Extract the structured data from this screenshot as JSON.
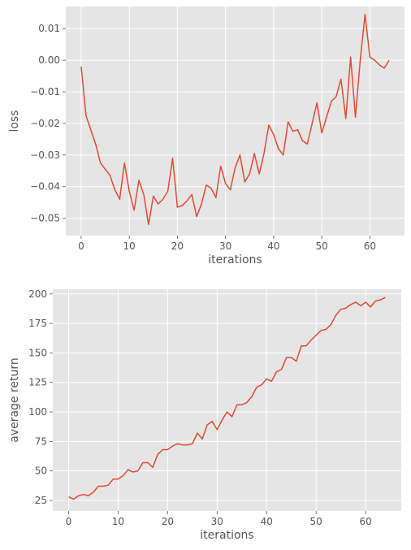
{
  "colors": {
    "panel_background": "#e5e5e5",
    "grid": "#ffffff",
    "line": "#e24a33",
    "text": "#555555"
  },
  "chart_data": [
    {
      "type": "line",
      "title": "",
      "xlabel": "iterations",
      "ylabel": "loss",
      "xlim": [
        -3.2,
        67.2
      ],
      "ylim": [
        -0.0555,
        0.017
      ],
      "xticks": [
        0,
        10,
        20,
        30,
        40,
        50,
        60
      ],
      "yticks": [
        0.01,
        0.0,
        -0.01,
        -0.02,
        -0.03,
        -0.04,
        -0.05
      ],
      "xtick_labels": [
        "0",
        "10",
        "20",
        "30",
        "40",
        "50",
        "60"
      ],
      "ytick_labels": [
        "0.01",
        "0.00",
        "−0.01",
        "−0.02",
        "−0.03",
        "−0.04",
        "−0.05"
      ],
      "grid": true,
      "series": [
        {
          "x": [
            0,
            1,
            2,
            3,
            4,
            5,
            6,
            7,
            8,
            9,
            10,
            11,
            12,
            13,
            14,
            15,
            16,
            17,
            18,
            19,
            20,
            21,
            22,
            23,
            24,
            25,
            26,
            27,
            28,
            29,
            30,
            31,
            32,
            33,
            34,
            35,
            36,
            37,
            38,
            39,
            40,
            41,
            42,
            43,
            44,
            45,
            46,
            47,
            48,
            49,
            50,
            51,
            52,
            53,
            54,
            55,
            56,
            57,
            58,
            59,
            60,
            61,
            62,
            63,
            64
          ],
          "y": [
            -0.002,
            -0.0175,
            -0.022,
            -0.0265,
            -0.0325,
            -0.0345,
            -0.0365,
            -0.041,
            -0.044,
            -0.0325,
            -0.0415,
            -0.0475,
            -0.038,
            -0.0425,
            -0.052,
            -0.043,
            -0.0455,
            -0.044,
            -0.0415,
            -0.031,
            -0.0465,
            -0.046,
            -0.0445,
            -0.0425,
            -0.0495,
            -0.0455,
            -0.0395,
            -0.0405,
            -0.0435,
            -0.0335,
            -0.039,
            -0.041,
            -0.034,
            -0.03,
            -0.0385,
            -0.036,
            -0.0295,
            -0.036,
            -0.0295,
            -0.0205,
            -0.0235,
            -0.028,
            -0.03,
            -0.0195,
            -0.0225,
            -0.022,
            -0.0255,
            -0.0265,
            -0.02,
            -0.0135,
            -0.023,
            -0.018,
            -0.013,
            -0.0115,
            -0.006,
            -0.0185,
            0.001,
            -0.018,
            0.0,
            0.0145,
            0.001,
            0.0,
            -0.0015,
            -0.0025,
            0.0
          ]
        }
      ]
    },
    {
      "type": "line",
      "title": "",
      "xlabel": "iterations",
      "ylabel": "average return",
      "xlim": [
        -3.2,
        67.2
      ],
      "ylim": [
        16,
        204
      ],
      "xticks": [
        0,
        10,
        20,
        30,
        40,
        50,
        60
      ],
      "yticks": [
        200,
        175,
        150,
        125,
        100,
        75,
        50,
        25
      ],
      "xtick_labels": [
        "0",
        "10",
        "20",
        "30",
        "40",
        "50",
        "60"
      ],
      "ytick_labels": [
        "200",
        "175",
        "150",
        "125",
        "100",
        "75",
        "50",
        "25"
      ],
      "grid": true,
      "series": [
        {
          "x": [
            0,
            1,
            2,
            3,
            4,
            5,
            6,
            7,
            8,
            9,
            10,
            11,
            12,
            13,
            14,
            15,
            16,
            17,
            18,
            19,
            20,
            21,
            22,
            23,
            24,
            25,
            26,
            27,
            28,
            29,
            30,
            31,
            32,
            33,
            34,
            35,
            36,
            37,
            38,
            39,
            40,
            41,
            42,
            43,
            44,
            45,
            46,
            47,
            48,
            49,
            50,
            51,
            52,
            53,
            54,
            55,
            56,
            57,
            58,
            59,
            60,
            61,
            62,
            63,
            64
          ],
          "y": [
            28,
            26,
            29,
            30,
            29,
            32,
            37,
            37,
            38,
            43,
            43,
            46,
            51,
            49,
            50,
            57,
            57,
            53,
            64,
            68,
            68,
            71,
            73,
            72,
            72,
            73,
            82,
            77,
            89,
            92,
            85,
            93,
            100,
            96,
            106,
            106,
            108,
            113,
            121,
            123,
            128,
            126,
            134,
            136,
            146,
            146,
            143,
            156,
            156,
            161,
            165,
            169,
            170,
            174,
            182,
            187,
            188,
            191,
            193,
            190,
            193,
            189,
            194,
            195,
            197
          ]
        }
      ]
    }
  ]
}
